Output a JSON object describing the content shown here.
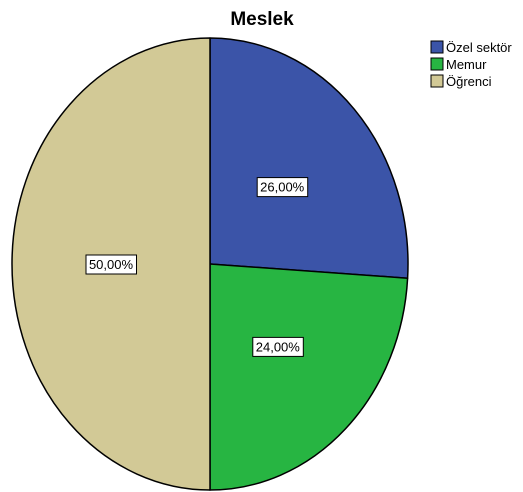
{
  "chart_data": {
    "type": "pie",
    "title": "Meslek",
    "categories": [
      "Özel sektör",
      "Memur",
      "Öğrenci"
    ],
    "values": [
      26,
      24,
      50
    ],
    "data_labels": [
      "26,00%",
      "24,00%",
      "50,00%"
    ],
    "colors": [
      "#3b54a8",
      "#27b542",
      "#d2c996"
    ],
    "legend_position": "top-right",
    "start_angle": "12 o'clock",
    "direction": "clockwise"
  }
}
